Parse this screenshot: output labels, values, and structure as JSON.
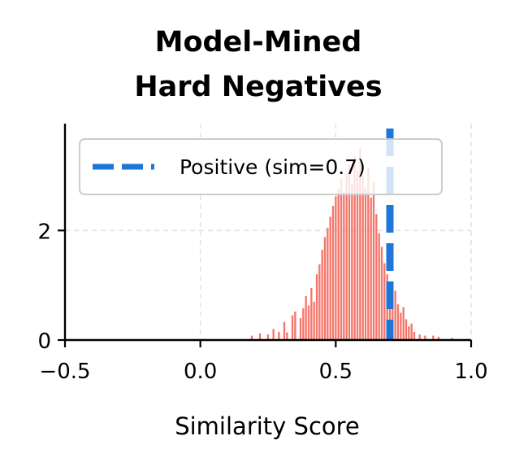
{
  "chart_data": {
    "type": "bar",
    "title_lines": [
      "Model-Mined",
      "Hard Negatives"
    ],
    "xlabel": "Similarity Score",
    "ylabel": "",
    "xlim": [
      -0.5,
      1.0
    ],
    "ylim": [
      0,
      3.95
    ],
    "x_ticks": [
      -0.5,
      0.0,
      0.5,
      1.0
    ],
    "x_tick_labels": [
      "−0.5",
      "0.0",
      "0.5",
      "1.0"
    ],
    "y_ticks": [
      0,
      2
    ],
    "y_tick_labels": [
      "0",
      "2"
    ],
    "grid": true,
    "bin_width": 0.01,
    "bar_color": "#f4756b",
    "bins": [
      {
        "x": 0.19,
        "y": 0.08
      },
      {
        "x": 0.22,
        "y": 0.12
      },
      {
        "x": 0.25,
        "y": 0.1
      },
      {
        "x": 0.27,
        "y": 0.2
      },
      {
        "x": 0.29,
        "y": 0.15
      },
      {
        "x": 0.31,
        "y": 0.33
      },
      {
        "x": 0.32,
        "y": 0.14
      },
      {
        "x": 0.34,
        "y": 0.45
      },
      {
        "x": 0.35,
        "y": 0.52
      },
      {
        "x": 0.37,
        "y": 0.4
      },
      {
        "x": 0.38,
        "y": 0.58
      },
      {
        "x": 0.39,
        "y": 0.8
      },
      {
        "x": 0.4,
        "y": 0.63
      },
      {
        "x": 0.41,
        "y": 0.95
      },
      {
        "x": 0.42,
        "y": 0.7
      },
      {
        "x": 0.43,
        "y": 1.2
      },
      {
        "x": 0.44,
        "y": 1.38
      },
      {
        "x": 0.45,
        "y": 1.65
      },
      {
        "x": 0.46,
        "y": 1.88
      },
      {
        "x": 0.47,
        "y": 2.05
      },
      {
        "x": 0.48,
        "y": 2.25
      },
      {
        "x": 0.49,
        "y": 2.45
      },
      {
        "x": 0.5,
        "y": 2.62
      },
      {
        "x": 0.51,
        "y": 2.75
      },
      {
        "x": 0.52,
        "y": 2.95
      },
      {
        "x": 0.53,
        "y": 2.7
      },
      {
        "x": 0.54,
        "y": 3.05
      },
      {
        "x": 0.55,
        "y": 3.2
      },
      {
        "x": 0.56,
        "y": 2.85
      },
      {
        "x": 0.57,
        "y": 3.35
      },
      {
        "x": 0.58,
        "y": 3.1
      },
      {
        "x": 0.59,
        "y": 3.5
      },
      {
        "x": 0.6,
        "y": 3.0
      },
      {
        "x": 0.61,
        "y": 2.78
      },
      {
        "x": 0.62,
        "y": 3.15
      },
      {
        "x": 0.63,
        "y": 2.6
      },
      {
        "x": 0.64,
        "y": 2.9
      },
      {
        "x": 0.65,
        "y": 2.3
      },
      {
        "x": 0.66,
        "y": 1.95
      },
      {
        "x": 0.67,
        "y": 1.7
      },
      {
        "x": 0.68,
        "y": 1.4
      },
      {
        "x": 0.69,
        "y": 1.2
      },
      {
        "x": 0.7,
        "y": 1.0
      },
      {
        "x": 0.71,
        "y": 0.8
      },
      {
        "x": 0.72,
        "y": 0.9
      },
      {
        "x": 0.73,
        "y": 0.65
      },
      {
        "x": 0.74,
        "y": 0.5
      },
      {
        "x": 0.75,
        "y": 0.6
      },
      {
        "x": 0.76,
        "y": 0.38
      },
      {
        "x": 0.77,
        "y": 0.25
      },
      {
        "x": 0.78,
        "y": 0.3
      },
      {
        "x": 0.79,
        "y": 0.15
      },
      {
        "x": 0.81,
        "y": 0.1
      },
      {
        "x": 0.83,
        "y": 0.08
      },
      {
        "x": 0.86,
        "y": 0.08
      },
      {
        "x": 0.88,
        "y": 0.06
      },
      {
        "x": 0.93,
        "y": 0.04
      }
    ],
    "reference_line": {
      "x": 0.7,
      "label": "Positive (sim=0.7)",
      "color": "#1e76d6",
      "style": "dashed"
    },
    "legend": {
      "location": "top-right",
      "entries": [
        "Positive (sim=0.7)"
      ]
    }
  }
}
